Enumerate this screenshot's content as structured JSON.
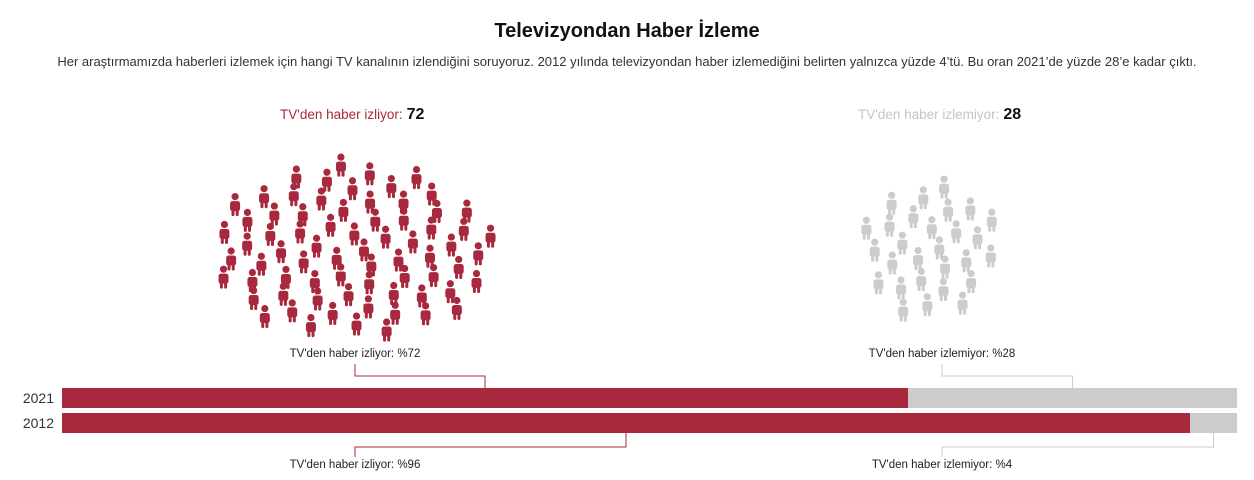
{
  "title": "Televizyondan Haber İzleme",
  "subtitle": "Her araştırmamızda haberleri izlemek için hangi TV kanalının izlendiğini soruyoruz. 2012 yılında televizyondan haber izlemediğini belirten yalnızca yüzde 4’tü. Bu oran 2021’de yüzde 28’e kadar çıktı.",
  "colors": {
    "watch": "#a8293e",
    "not_watch": "#cccccc"
  },
  "icon": "person-icon",
  "groups": {
    "watch": {
      "label": "TV'den haber izliyor:",
      "count": "72"
    },
    "not_watch": {
      "label": "TV'den haber izlemiyor:",
      "count": "28"
    }
  },
  "chart_data": {
    "type": "bar",
    "orientation": "horizontal",
    "stacked": true,
    "categories": [
      "2021",
      "2012"
    ],
    "series": [
      {
        "name": "TV'den haber izliyor",
        "values": [
          72,
          96
        ],
        "color": "#a8293e"
      },
      {
        "name": "TV'den haber izlemiyor",
        "values": [
          28,
          4
        ],
        "color": "#cccccc"
      }
    ],
    "xlim": [
      0,
      100
    ],
    "annotations": {
      "2021": {
        "watch": "TV'den haber izliyor: %72",
        "not_watch": "TV'den haber izlemiyor: %28"
      },
      "2012": {
        "watch": "TV'den haber izliyor: %96",
        "not_watch": "TV'den haber izlemiyor: %4"
      }
    }
  }
}
